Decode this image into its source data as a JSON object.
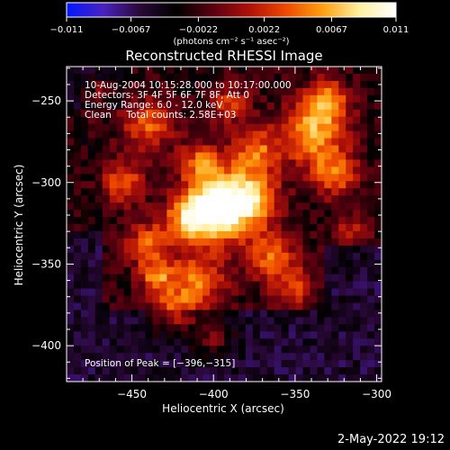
{
  "colorbar": {
    "ticks": [
      "-0.011",
      "-0.0067",
      "-0.0022",
      "0.0022",
      "0.0067",
      "0.011"
    ],
    "unit_label": "(photons cm⁻² s⁻¹ asec⁻²)",
    "vmin": -0.011,
    "vmax": 0.011,
    "colormap": [
      "#0018ff",
      "#4a22c0",
      "#2a0838",
      "#000000",
      "#5a0010",
      "#b01008",
      "#ee4a00",
      "#ffa010",
      "#fff0a0",
      "#ffffff"
    ]
  },
  "chart_data": {
    "type": "heatmap",
    "title": "Reconstructed RHESSI Image",
    "xlabel": "Heliocentric X (arcsec)",
    "ylabel": "Heliocentric Y (arcsec)",
    "xlim": [
      -490,
      -297
    ],
    "ylim": [
      -422,
      -229
    ],
    "xticks": [
      -450,
      -400,
      -350,
      -300
    ],
    "yticks": [
      -250,
      -300,
      -350,
      -400
    ],
    "xtick_labels": [
      "−450",
      "−400",
      "−350",
      "−300"
    ],
    "ytick_labels": [
      "−250",
      "−300",
      "−350",
      "−400"
    ],
    "grid": false,
    "peak": {
      "x": -396,
      "y": -315
    },
    "info_lines": [
      "10-Aug-2004 10:15:28.000 to 10:17:00.000",
      "Detectors: 3F 4F 5F 6F 7F 8F, Att 0",
      "Energy Range: 6.0 - 12.0 keV",
      "Clean     Total counts: 2.58E+03"
    ],
    "peak_label": "Position of Peak = [−396,−315]",
    "sources": [
      {
        "x": -396,
        "y": -315,
        "sigma": 14,
        "amp": 1.0
      },
      {
        "x": -415,
        "y": -322,
        "sigma": 10,
        "amp": 0.55
      },
      {
        "x": -375,
        "y": -310,
        "sigma": 11,
        "amp": 0.55
      },
      {
        "x": -340,
        "y": -270,
        "sigma": 14,
        "amp": 0.6
      },
      {
        "x": -325,
        "y": -295,
        "sigma": 10,
        "amp": 0.45
      },
      {
        "x": -330,
        "y": -250,
        "sigma": 9,
        "amp": 0.5
      },
      {
        "x": -375,
        "y": -282,
        "sigma": 10,
        "amp": 0.5
      },
      {
        "x": -408,
        "y": -288,
        "sigma": 9,
        "amp": 0.45
      },
      {
        "x": -440,
        "y": -265,
        "sigma": 11,
        "amp": 0.45
      },
      {
        "x": -455,
        "y": -300,
        "sigma": 9,
        "amp": 0.45
      },
      {
        "x": -470,
        "y": -245,
        "sigma": 8,
        "amp": 0.3
      },
      {
        "x": -440,
        "y": -338,
        "sigma": 10,
        "amp": 0.45
      },
      {
        "x": -410,
        "y": -360,
        "sigma": 12,
        "amp": 0.5
      },
      {
        "x": -365,
        "y": -345,
        "sigma": 11,
        "amp": 0.45
      },
      {
        "x": -350,
        "y": -365,
        "sigma": 9,
        "amp": 0.35
      },
      {
        "x": -425,
        "y": -380,
        "sigma": 10,
        "amp": 0.4
      },
      {
        "x": -435,
        "y": -358,
        "sigma": 7,
        "amp": 0.45
      },
      {
        "x": -400,
        "y": -395,
        "sigma": 9,
        "amp": 0.3
      },
      {
        "x": -390,
        "y": -252,
        "sigma": 8,
        "amp": 0.4
      },
      {
        "x": -315,
        "y": -330,
        "sigma": 8,
        "amp": 0.3
      }
    ],
    "background_level": -0.25,
    "noise_seed": 17
  },
  "timestamp": "2-May-2022 19:12"
}
